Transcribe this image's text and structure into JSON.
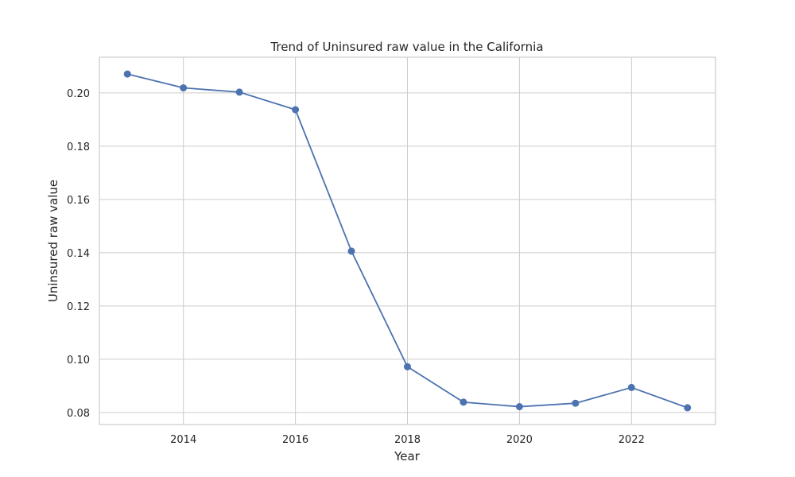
{
  "chart_data": {
    "type": "line",
    "title": "Trend of Uninsured raw value in the California",
    "xlabel": "Year",
    "ylabel": "Uninsured raw value",
    "x": [
      2013,
      2014,
      2015,
      2016,
      2017,
      2018,
      2019,
      2020,
      2021,
      2022,
      2023
    ],
    "series": [
      {
        "values": [
          0.2071,
          0.2019,
          0.2003,
          0.1937,
          0.1406,
          0.0972,
          0.0839,
          0.0822,
          0.0835,
          0.0894,
          0.0818
        ]
      }
    ],
    "xticks": [
      "2014",
      "2016",
      "2018",
      "2020",
      "2022"
    ],
    "yticks": [
      "0.08",
      "0.10",
      "0.12",
      "0.14",
      "0.16",
      "0.18",
      "0.20"
    ],
    "xlim": [
      2012.5,
      2023.5
    ],
    "ylim": [
      0.0755,
      0.2134
    ],
    "grid": true,
    "colors": {
      "line": "#4c72b0",
      "grid": "#cccccc"
    }
  }
}
